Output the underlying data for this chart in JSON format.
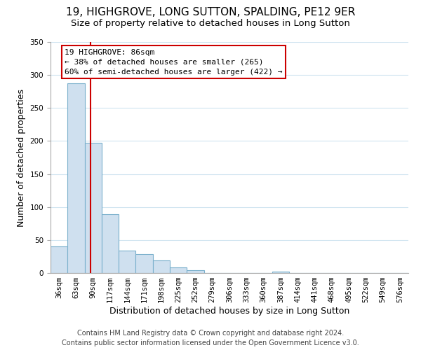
{
  "title": "19, HIGHGROVE, LONG SUTTON, SPALDING, PE12 9ER",
  "subtitle": "Size of property relative to detached houses in Long Sutton",
  "xlabel": "Distribution of detached houses by size in Long Sutton",
  "ylabel": "Number of detached properties",
  "bar_color": "#cfe0ef",
  "bar_edge_color": "#7ab0cc",
  "background_color": "#ffffff",
  "grid_color": "#d0e4f0",
  "vline_color": "#cc0000",
  "ylim": [
    0,
    350
  ],
  "yticks": [
    0,
    50,
    100,
    150,
    200,
    250,
    300,
    350
  ],
  "bin_labels": [
    "36sqm",
    "63sqm",
    "90sqm",
    "117sqm",
    "144sqm",
    "171sqm",
    "198sqm",
    "225sqm",
    "252sqm",
    "279sqm",
    "306sqm",
    "333sqm",
    "360sqm",
    "387sqm",
    "414sqm",
    "441sqm",
    "468sqm",
    "495sqm",
    "522sqm",
    "549sqm",
    "576sqm"
  ],
  "bar_values": [
    40,
    287,
    197,
    89,
    34,
    29,
    19,
    8,
    4,
    0,
    0,
    0,
    0,
    2,
    0,
    0,
    0,
    0,
    0,
    0,
    0
  ],
  "vline_position": 1.85,
  "annotation_title": "19 HIGHGROVE: 86sqm",
  "annotation_line1": "← 38% of detached houses are smaller (265)",
  "annotation_line2": "60% of semi-detached houses are larger (422) →",
  "footer_line1": "Contains HM Land Registry data © Crown copyright and database right 2024.",
  "footer_line2": "Contains public sector information licensed under the Open Government Licence v3.0.",
  "title_fontsize": 11,
  "subtitle_fontsize": 9.5,
  "axis_label_fontsize": 9,
  "tick_fontsize": 7.5,
  "annotation_fontsize": 8,
  "footer_fontsize": 7
}
